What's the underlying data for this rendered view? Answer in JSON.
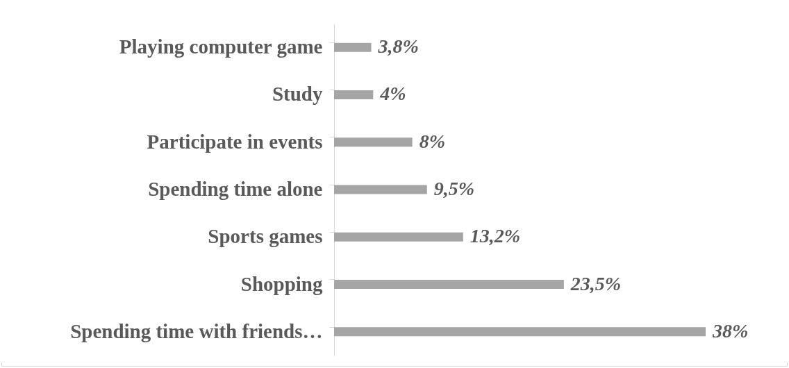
{
  "chart_data": {
    "type": "bar",
    "orientation": "horizontal",
    "categories": [
      "Playing computer game",
      "Study",
      "Participate in events",
      "Spending time alone",
      "Sports games",
      "Shopping",
      "Spending time with friends…"
    ],
    "values": [
      3.8,
      4,
      8,
      9.5,
      13.2,
      23.5,
      38
    ],
    "value_labels": [
      "3,8%",
      "4%",
      "8%",
      "9,5%",
      "13,2%",
      "23,5%",
      "38%"
    ],
    "color": "#a5a5a5"
  }
}
